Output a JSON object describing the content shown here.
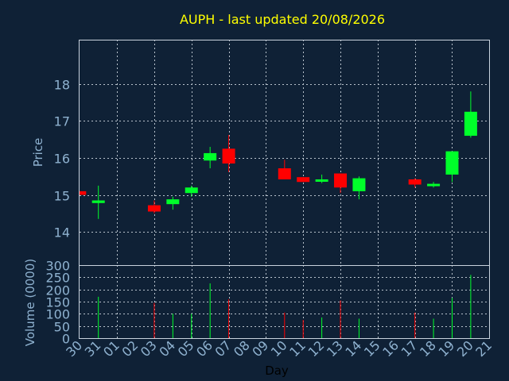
{
  "chart_data": {
    "type": "candlestick",
    "title": "AUPH - last updated 20/08/2026",
    "xlabel": "Day",
    "ylabel": "Price",
    "volume_label": "Volume (0000)",
    "categories": [
      "30",
      "31",
      "01",
      "02",
      "03",
      "04",
      "05",
      "06",
      "07",
      "08",
      "09",
      "10",
      "11",
      "12",
      "13",
      "14",
      "15",
      "16",
      "17",
      "18",
      "19",
      "20",
      "21"
    ],
    "price_ylim": [
      13.1,
      19.2
    ],
    "price_ticks": [
      14,
      15,
      16,
      17,
      18
    ],
    "volume_ylim": [
      0,
      300
    ],
    "volume_ticks": [
      0,
      50,
      100,
      150,
      200,
      250,
      300
    ],
    "grid": true,
    "colors": {
      "up": "#00ff2a",
      "down": "#ff0000",
      "background": "#0f2136",
      "title": "#ffff00",
      "axis_text": "#8fb2d0"
    },
    "candles": [
      {
        "day": "30",
        "open": 15.1,
        "close": 15.0,
        "high": 15.1,
        "low": 15.0,
        "volume": 0
      },
      {
        "day": "31",
        "open": 14.78,
        "close": 14.85,
        "high": 15.25,
        "low": 14.35,
        "volume": 170
      },
      {
        "day": "03",
        "open": 14.72,
        "close": 14.55,
        "high": 14.85,
        "low": 14.5,
        "volume": 145
      },
      {
        "day": "04",
        "open": 14.75,
        "close": 14.88,
        "high": 14.95,
        "low": 14.6,
        "volume": 100
      },
      {
        "day": "05",
        "open": 15.05,
        "close": 15.2,
        "high": 15.25,
        "low": 14.95,
        "volume": 100
      },
      {
        "day": "06",
        "open": 15.93,
        "close": 16.13,
        "high": 16.3,
        "low": 15.72,
        "volume": 225
      },
      {
        "day": "07",
        "open": 16.25,
        "close": 15.85,
        "high": 16.62,
        "low": 15.62,
        "volume": 160
      },
      {
        "day": "10",
        "open": 15.72,
        "close": 15.42,
        "high": 15.95,
        "low": 15.42,
        "volume": 105
      },
      {
        "day": "11",
        "open": 15.48,
        "close": 15.35,
        "high": 15.48,
        "low": 15.35,
        "volume": 75
      },
      {
        "day": "12",
        "open": 15.4,
        "close": 15.42,
        "high": 15.55,
        "low": 15.32,
        "volume": 85
      },
      {
        "day": "13",
        "open": 15.58,
        "close": 15.2,
        "high": 15.58,
        "low": 15.05,
        "volume": 155
      },
      {
        "day": "14",
        "open": 15.1,
        "close": 15.45,
        "high": 15.5,
        "low": 14.88,
        "volume": 80
      },
      {
        "day": "17",
        "open": 15.42,
        "close": 15.28,
        "high": 15.45,
        "low": 15.2,
        "volume": 105
      },
      {
        "day": "18",
        "open": 15.25,
        "close": 15.3,
        "high": 15.35,
        "low": 15.2,
        "volume": 80
      },
      {
        "day": "19",
        "open": 15.55,
        "close": 16.18,
        "high": 16.18,
        "low": 15.35,
        "volume": 165
      },
      {
        "day": "20",
        "open": 16.6,
        "close": 17.25,
        "high": 17.8,
        "low": 16.55,
        "volume": 260
      }
    ]
  }
}
